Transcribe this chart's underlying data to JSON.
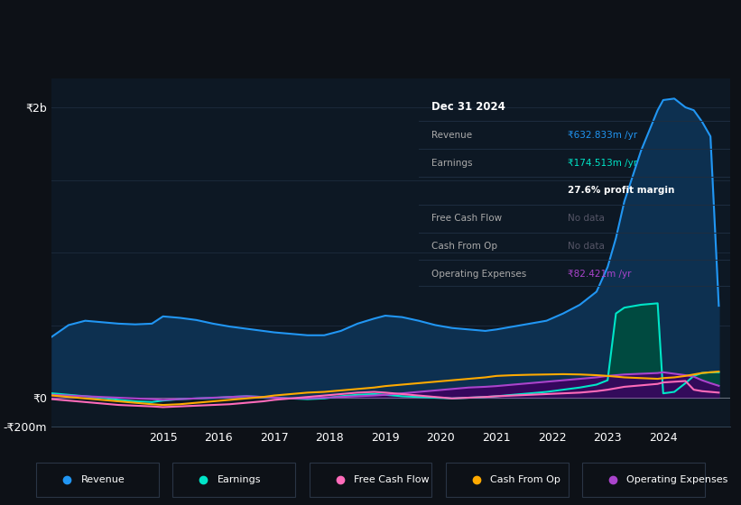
{
  "bg_color": "#0d1117",
  "plot_bg_color": "#0d1824",
  "grid_color": "#1e2d40",
  "title_box": {
    "date": "Dec 31 2024",
    "revenue_val": "₹632.833m /yr",
    "earnings_val": "₹174.513m /yr",
    "profit_margin": "27.6% profit margin",
    "fcf": "No data",
    "cashop": "No data",
    "opex_val": "₹82.421m /yr"
  },
  "years": [
    2013.0,
    2013.3,
    2013.6,
    2013.9,
    2014.2,
    2014.5,
    2014.8,
    2015.0,
    2015.3,
    2015.6,
    2015.9,
    2016.2,
    2016.5,
    2016.8,
    2017.0,
    2017.3,
    2017.6,
    2017.9,
    2018.2,
    2018.5,
    2018.8,
    2019.0,
    2019.3,
    2019.6,
    2019.9,
    2020.2,
    2020.5,
    2020.8,
    2021.0,
    2021.3,
    2021.6,
    2021.9,
    2022.2,
    2022.5,
    2022.8,
    2023.0,
    2023.15,
    2023.3,
    2023.6,
    2023.9,
    2024.0,
    2024.2,
    2024.4,
    2024.55,
    2024.7,
    2024.85,
    2025.0
  ],
  "revenue": [
    420,
    500,
    530,
    520,
    510,
    505,
    510,
    560,
    550,
    535,
    510,
    490,
    475,
    460,
    450,
    440,
    430,
    430,
    460,
    510,
    545,
    565,
    555,
    530,
    500,
    480,
    470,
    460,
    470,
    490,
    510,
    530,
    580,
    640,
    730,
    900,
    1100,
    1350,
    1700,
    1980,
    2050,
    2060,
    2000,
    1980,
    1900,
    1800,
    633
  ],
  "earnings": [
    30,
    20,
    10,
    0,
    -15,
    -25,
    -30,
    -20,
    -10,
    -5,
    -2,
    5,
    10,
    5,
    0,
    -5,
    -10,
    -5,
    10,
    20,
    25,
    20,
    10,
    5,
    0,
    -5,
    0,
    5,
    10,
    20,
    30,
    40,
    55,
    70,
    90,
    120,
    580,
    620,
    640,
    650,
    30,
    40,
    100,
    150,
    170,
    175,
    175
  ],
  "fcf": [
    -10,
    -20,
    -30,
    -40,
    -50,
    -55,
    -60,
    -65,
    -60,
    -55,
    -50,
    -45,
    -35,
    -25,
    -15,
    -5,
    5,
    15,
    25,
    35,
    40,
    35,
    25,
    15,
    5,
    -5,
    0,
    5,
    10,
    15,
    20,
    25,
    30,
    35,
    45,
    55,
    65,
    75,
    85,
    95,
    105,
    110,
    115,
    55,
    45,
    40,
    35
  ],
  "cash_from_op": [
    15,
    5,
    -5,
    -15,
    -25,
    -35,
    -45,
    -50,
    -45,
    -35,
    -25,
    -15,
    -5,
    5,
    15,
    25,
    35,
    40,
    50,
    60,
    70,
    80,
    90,
    100,
    110,
    120,
    130,
    140,
    150,
    155,
    158,
    160,
    162,
    160,
    155,
    150,
    145,
    140,
    135,
    130,
    135,
    140,
    150,
    160,
    170,
    175,
    180
  ],
  "opex": [
    20,
    15,
    10,
    5,
    0,
    -5,
    -10,
    -15,
    -10,
    -5,
    0,
    5,
    10,
    5,
    0,
    -5,
    -5,
    0,
    5,
    10,
    15,
    20,
    30,
    40,
    50,
    60,
    70,
    75,
    80,
    90,
    100,
    110,
    120,
    130,
    140,
    150,
    155,
    160,
    165,
    170,
    175,
    165,
    155,
    145,
    120,
    100,
    82
  ],
  "revenue_color": "#2196f3",
  "revenue_fill": "#0d3050",
  "earnings_color": "#00e5c8",
  "earnings_fill": "#004a40",
  "fcf_color": "#ff6bba",
  "cashop_color": "#ffaa00",
  "opex_color": "#aa44cc",
  "opex_fill": "#3d0060",
  "ylim": [
    -200,
    2200
  ],
  "xtick_years": [
    2015,
    2016,
    2017,
    2018,
    2019,
    2020,
    2021,
    2022,
    2023,
    2024
  ],
  "ytick_labels": [
    "-₹200m",
    "₹0",
    "₹2b"
  ],
  "legend_items": [
    {
      "label": "Revenue",
      "color": "#2196f3"
    },
    {
      "label": "Earnings",
      "color": "#00e5c8"
    },
    {
      "label": "Free Cash Flow",
      "color": "#ff6bba"
    },
    {
      "label": "Cash From Op",
      "color": "#ffaa00"
    },
    {
      "label": "Operating Expenses",
      "color": "#aa44cc"
    }
  ]
}
